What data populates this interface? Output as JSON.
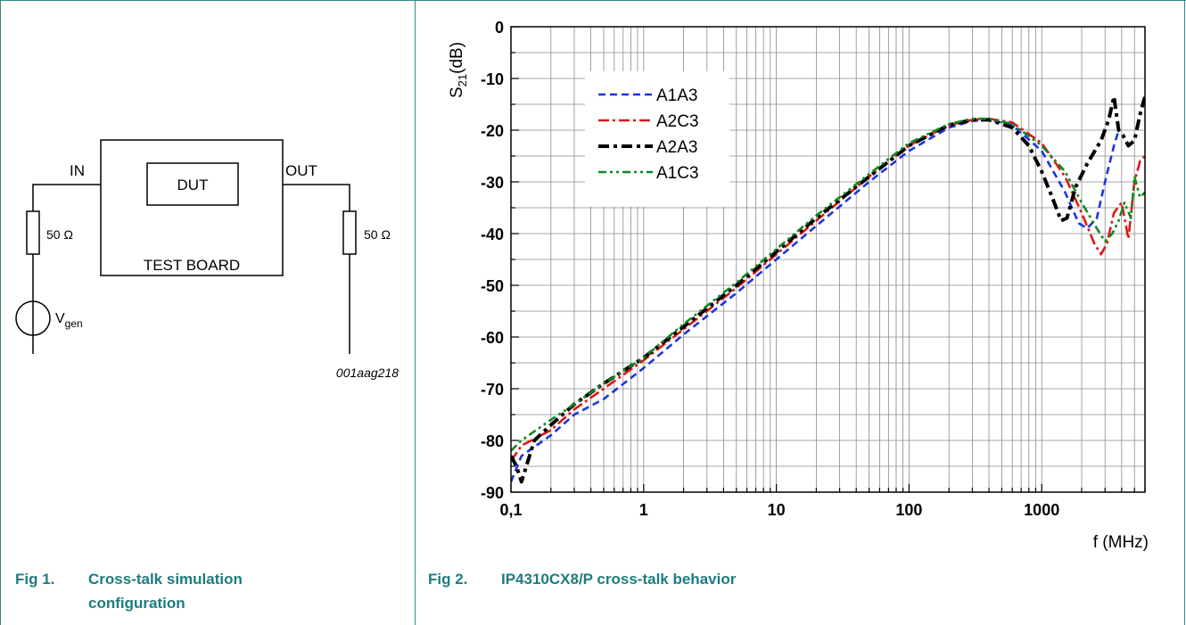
{
  "figure1": {
    "caption_num": "Fig 1.",
    "caption_line1": "Cross-talk simulation",
    "caption_line2": "configuration",
    "labels": {
      "in": "IN",
      "out": "OUT",
      "dut": "DUT",
      "test_board": "TEST BOARD",
      "r_in": "50 Ω",
      "r_out": "50 Ω",
      "vgen_main": "V",
      "vgen_sub": "gen",
      "code": "001aag218"
    }
  },
  "figure2": {
    "caption_num": "Fig 2.",
    "caption_text": "IP4310CX8/P cross-talk behavior"
  },
  "chart_data": {
    "type": "line",
    "xlabel": "f (MHz)",
    "ylabel_main": "S",
    "ylabel_sub": "21",
    "ylabel_unit": "(dB)",
    "x_scale": "log",
    "xlim": [
      0.1,
      6000
    ],
    "ylim": [
      -90,
      0
    ],
    "x_ticks": [
      0.1,
      1,
      10,
      100,
      1000
    ],
    "x_tick_labels": [
      "0,1",
      "1",
      "10",
      "100",
      "1000"
    ],
    "y_ticks": [
      0,
      -10,
      -20,
      -30,
      -40,
      -50,
      -60,
      -70,
      -80,
      -90
    ],
    "y_tick_labels": [
      "0",
      "-10",
      "-20",
      "-30",
      "-40",
      "-50",
      "-60",
      "-70",
      "-80",
      "-90"
    ],
    "grid": true,
    "legend_position": "top-left",
    "series": [
      {
        "name": "A1A3",
        "color": "#1a35e0",
        "style": "dash",
        "points": [
          [
            0.1,
            -88
          ],
          [
            0.12,
            -83
          ],
          [
            0.2,
            -79
          ],
          [
            0.3,
            -75
          ],
          [
            0.5,
            -72
          ],
          [
            1,
            -66
          ],
          [
            2,
            -59.5
          ],
          [
            5,
            -51.5
          ],
          [
            10,
            -45
          ],
          [
            20,
            -38.5
          ],
          [
            50,
            -30
          ],
          [
            100,
            -24
          ],
          [
            200,
            -19.5
          ],
          [
            300,
            -18.2
          ],
          [
            400,
            -18
          ],
          [
            600,
            -19
          ],
          [
            1000,
            -24
          ],
          [
            1500,
            -32
          ],
          [
            1900,
            -38
          ],
          [
            2200,
            -39
          ],
          [
            2600,
            -37
          ],
          [
            3000,
            -30
          ],
          [
            3500,
            -23
          ],
          [
            3800,
            -20
          ]
        ]
      },
      {
        "name": "A2C3",
        "color": "#e01616",
        "style": "dashdot",
        "points": [
          [
            0.1,
            -84
          ],
          [
            0.12,
            -81
          ],
          [
            0.2,
            -78
          ],
          [
            0.3,
            -74
          ],
          [
            0.5,
            -70
          ],
          [
            1,
            -64.5
          ],
          [
            2,
            -58.5
          ],
          [
            5,
            -50.5
          ],
          [
            10,
            -44
          ],
          [
            20,
            -37.5
          ],
          [
            50,
            -29
          ],
          [
            100,
            -23
          ],
          [
            200,
            -19
          ],
          [
            300,
            -18
          ],
          [
            400,
            -17.8
          ],
          [
            600,
            -18.5
          ],
          [
            1000,
            -22.5
          ],
          [
            1500,
            -29
          ],
          [
            2000,
            -36
          ],
          [
            2500,
            -42
          ],
          [
            2800,
            -44
          ],
          [
            3100,
            -42
          ],
          [
            3500,
            -36
          ],
          [
            4000,
            -34
          ],
          [
            4500,
            -41
          ],
          [
            5000,
            -30
          ],
          [
            5500,
            -26
          ],
          [
            6000,
            -25
          ]
        ]
      },
      {
        "name": "A2A3",
        "color": "#000000",
        "style": "dashdot-thick",
        "points": [
          [
            0.1,
            -83
          ],
          [
            0.11,
            -85
          ],
          [
            0.12,
            -88
          ],
          [
            0.15,
            -80
          ],
          [
            0.2,
            -77
          ],
          [
            0.3,
            -73
          ],
          [
            0.5,
            -69
          ],
          [
            1,
            -64
          ],
          [
            2,
            -58
          ],
          [
            5,
            -50
          ],
          [
            10,
            -43.5
          ],
          [
            20,
            -37
          ],
          [
            50,
            -29
          ],
          [
            100,
            -23
          ],
          [
            200,
            -19
          ],
          [
            300,
            -18
          ],
          [
            400,
            -18
          ],
          [
            600,
            -19.5
          ],
          [
            800,
            -23
          ],
          [
            1000,
            -28
          ],
          [
            1200,
            -33
          ],
          [
            1400,
            -37.5
          ],
          [
            1550,
            -37
          ],
          [
            1800,
            -31
          ],
          [
            2200,
            -26.5
          ],
          [
            2800,
            -22
          ],
          [
            3200,
            -18
          ],
          [
            3500,
            -13.5
          ],
          [
            3800,
            -20
          ],
          [
            4100,
            -21
          ],
          [
            4500,
            -23
          ],
          [
            5000,
            -22
          ],
          [
            5500,
            -17
          ],
          [
            6000,
            -13.5
          ]
        ]
      },
      {
        "name": "A1C3",
        "color": "#0f8a1f",
        "style": "dashdotdot",
        "points": [
          [
            0.1,
            -82
          ],
          [
            0.12,
            -80
          ],
          [
            0.2,
            -76
          ],
          [
            0.3,
            -73
          ],
          [
            0.5,
            -69
          ],
          [
            1,
            -64
          ],
          [
            2,
            -57.5
          ],
          [
            5,
            -49.5
          ],
          [
            10,
            -43
          ],
          [
            20,
            -36.5
          ],
          [
            50,
            -28.5
          ],
          [
            100,
            -22.5
          ],
          [
            200,
            -18.8
          ],
          [
            300,
            -17.8
          ],
          [
            400,
            -17.8
          ],
          [
            600,
            -18.8
          ],
          [
            1000,
            -23
          ],
          [
            1500,
            -28
          ],
          [
            2000,
            -34
          ],
          [
            2600,
            -39
          ],
          [
            3000,
            -41.5
          ],
          [
            3400,
            -40
          ],
          [
            3800,
            -37.5
          ],
          [
            4200,
            -34
          ],
          [
            4700,
            -37
          ],
          [
            5000,
            -29
          ],
          [
            5500,
            -33
          ],
          [
            6000,
            -32
          ]
        ]
      }
    ]
  }
}
